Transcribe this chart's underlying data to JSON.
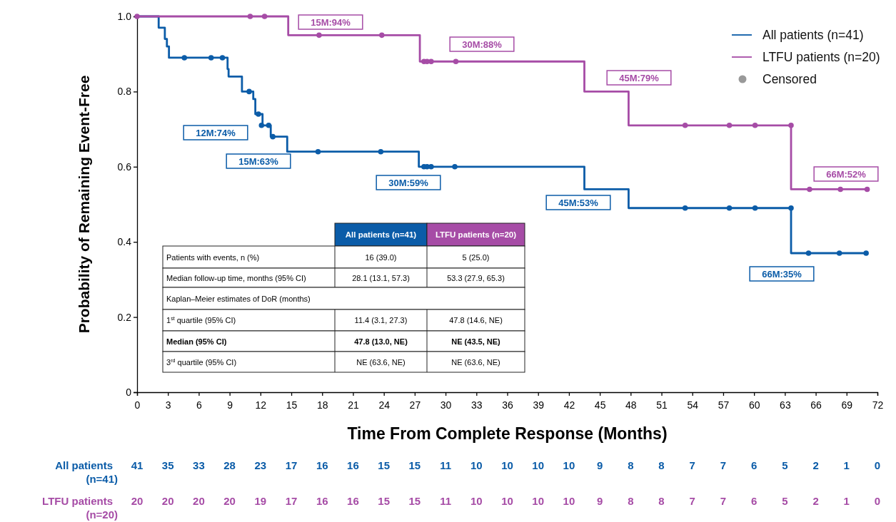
{
  "chart_data": {
    "type": "step",
    "xlabel": "Time From Complete Response (Months)",
    "ylabel": "Probability of Remaining Event-Free",
    "xlim": [
      0,
      72
    ],
    "ylim": [
      0,
      1
    ],
    "xticks": [
      0,
      3,
      6,
      9,
      12,
      15,
      18,
      21,
      24,
      27,
      30,
      33,
      36,
      39,
      42,
      45,
      48,
      51,
      54,
      57,
      60,
      63,
      66,
      69,
      72
    ],
    "yticks": [
      0,
      0.2,
      0.4,
      0.6,
      0.8,
      {
        "value": 1,
        "label": "1.0"
      }
    ],
    "grid": false,
    "legend": "top right",
    "series": [
      {
        "name": "All patients (n=41)",
        "color": "#0b5ca8",
        "x": [
          0,
          2.1,
          2.7,
          2.9,
          3.1,
          8.8,
          8.9,
          10.2,
          11.3,
          11.5,
          12.2,
          13.0,
          14.6,
          27.4,
          43.5,
          47.8,
          63.6,
          70.9
        ],
        "values": [
          1,
          0.97,
          0.94,
          0.92,
          0.89,
          0.86,
          0.84,
          0.8,
          0.78,
          0.74,
          0.71,
          0.68,
          0.64,
          0.6,
          0.54,
          0.49,
          0.37,
          0.37
        ]
      },
      {
        "name": "LTFU patients (n=20)",
        "color": "#a64ca6",
        "x": [
          0,
          14.7,
          27.5,
          43.5,
          47.8,
          63.6,
          71.0
        ],
        "values": [
          1,
          0.95,
          0.88,
          0.8,
          0.71,
          0.54,
          0.54
        ]
      },
      {
        "type": "scatter",
        "marker": "circle",
        "color": "#0b5ca8",
        "x": [
          4.6,
          7.2,
          8.3,
          10.9,
          11.8,
          12.1,
          12.8,
          13.2,
          17.6,
          23.7,
          27.9,
          28.2,
          28.6,
          30.9,
          53.3,
          57.6,
          60.1,
          63.6,
          65.3,
          68.3,
          70.9
        ],
        "values": [
          0.89,
          0.89,
          0.89,
          0.8,
          0.74,
          0.71,
          0.71,
          0.68,
          0.64,
          0.64,
          0.6,
          0.6,
          0.6,
          0.6,
          0.49,
          0.49,
          0.49,
          0.49,
          0.37,
          0.37,
          0.37
        ]
      },
      {
        "type": "scatter",
        "marker": "circle",
        "color": "#a64ca6",
        "x": [
          0,
          11.0,
          12.4,
          17.7,
          23.8,
          27.9,
          28.2,
          28.6,
          31.0,
          53.3,
          57.6,
          60.1,
          63.6,
          65.4,
          68.4,
          71.0
        ],
        "values": [
          1,
          1,
          1,
          0.95,
          0.95,
          0.88,
          0.88,
          0.88,
          0.88,
          0.71,
          0.71,
          0.71,
          0.71,
          0.54,
          0.54,
          0.54
        ]
      },
      {
        "type": "scatter",
        "marker": "circle",
        "name": "Censored",
        "color": "#999999"
      }
    ],
    "annotations": [
      "All patients (n=41)",
      "LTFU patients (n=20)",
      "Patients with events, n (%)",
      "16 (39.0)",
      "5 (25.0)",
      "Median follow-up time, months (95% CI)",
      "28.1 (13.1, 57.3)",
      "53.3 (27.9, 65.3)",
      "Kaplan–Meier estimates of DoR (months)",
      "1$^{st}$ quartile (95% CI)",
      "11.4 (3.1, 27.3)",
      "47.8 (14.6, NE)",
      "Median (95% CI)",
      "47.8 (13.0, NE)",
      "NE (43.5, NE)",
      "3$^{rd}$ quartile (95% CI)",
      "NE (63.6, NE)",
      "NE (63.6, NE)",
      "All patients (n=41)",
      "41 35 33 28 23 17 16 16 15 15 11 10 10 10 10 9 8 8 7 7 6 5 2 1 0",
      "LTFU patients (n=20)",
      "20 20 20 20 19 17 16 16 15 15 11 10 10 10 10 9 8 8 7 7 6 5 2 1 0",
      "12M:74%",
      "15M:63%",
      "30M:59%",
      "45M:53%",
      "66M:35%",
      "15M:94%",
      "30M:88%",
      "45M:79%",
      "66M:52%"
    ]
  }
}
